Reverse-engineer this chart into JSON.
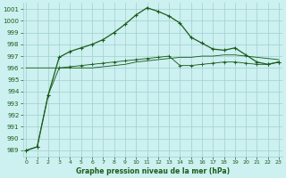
{
  "xlabel": "Graphe pression niveau de la mer (hPa)",
  "bg_color": "#cdf0f0",
  "grid_color": "#9ecfcf",
  "line_color": "#1a5c1a",
  "line1_y": [
    989.0,
    989.3,
    993.7,
    996.9,
    997.4,
    997.7,
    998.0,
    998.4,
    999.0,
    999.7,
    1000.5,
    1001.1,
    1000.8,
    1000.4,
    999.8,
    998.6,
    998.1,
    997.6,
    997.5,
    997.7,
    997.1,
    996.5,
    996.3,
    996.5
  ],
  "line2_y": [
    989.0,
    989.3,
    993.7,
    996.0,
    996.1,
    996.2,
    996.3,
    996.4,
    996.5,
    996.6,
    996.7,
    996.8,
    996.9,
    997.0,
    996.2,
    996.2,
    996.3,
    996.4,
    996.5,
    996.5,
    996.4,
    996.3,
    996.3,
    996.5
  ],
  "line3_y": [
    996.0,
    996.0,
    996.0,
    996.0,
    996.0,
    996.0,
    996.0,
    996.1,
    996.2,
    996.3,
    996.5,
    996.6,
    996.7,
    996.8,
    996.9,
    996.9,
    997.0,
    997.0,
    997.1,
    997.1,
    997.0,
    996.9,
    996.8,
    996.7
  ],
  "ylim": [
    988.5,
    1001.5
  ],
  "yticks": [
    989,
    990,
    991,
    992,
    993,
    994,
    995,
    996,
    997,
    998,
    999,
    1000,
    1001
  ],
  "xticks": [
    0,
    1,
    2,
    3,
    4,
    5,
    6,
    7,
    8,
    9,
    10,
    11,
    12,
    13,
    14,
    15,
    16,
    17,
    18,
    19,
    20,
    21,
    22,
    23
  ],
  "font_color": "#1a5c1a",
  "markersize": 3.5,
  "linewidth": 0.9
}
